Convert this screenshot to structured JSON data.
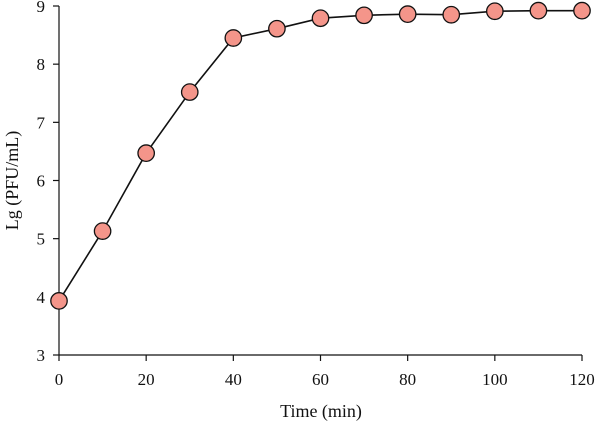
{
  "chart_data": {
    "type": "line",
    "title": "",
    "xlabel": "Time (min)",
    "ylabel": "Lg (PFU/mL)",
    "xlim": [
      0,
      120
    ],
    "ylim": [
      3,
      9
    ],
    "x_ticks": [
      0,
      20,
      40,
      60,
      80,
      100,
      120
    ],
    "y_ticks": [
      3,
      4,
      5,
      6,
      7,
      8,
      9
    ],
    "x_tick_labels": [
      "0",
      "20",
      "40",
      "60",
      "80",
      "100",
      "120"
    ],
    "y_tick_labels": [
      "3",
      "4",
      "5",
      "6",
      "7",
      "8",
      "9"
    ],
    "grid": false,
    "legend": "none",
    "marker_color": "#f4958a",
    "line_color": "#111111",
    "series": [
      {
        "x": [
          0,
          10,
          20,
          30,
          40,
          50,
          60,
          70,
          80,
          90,
          100,
          110,
          120
        ],
        "y": [
          3.93,
          5.13,
          6.47,
          7.52,
          8.45,
          8.61,
          8.79,
          8.84,
          8.86,
          8.85,
          8.91,
          8.92,
          8.92
        ]
      }
    ]
  }
}
